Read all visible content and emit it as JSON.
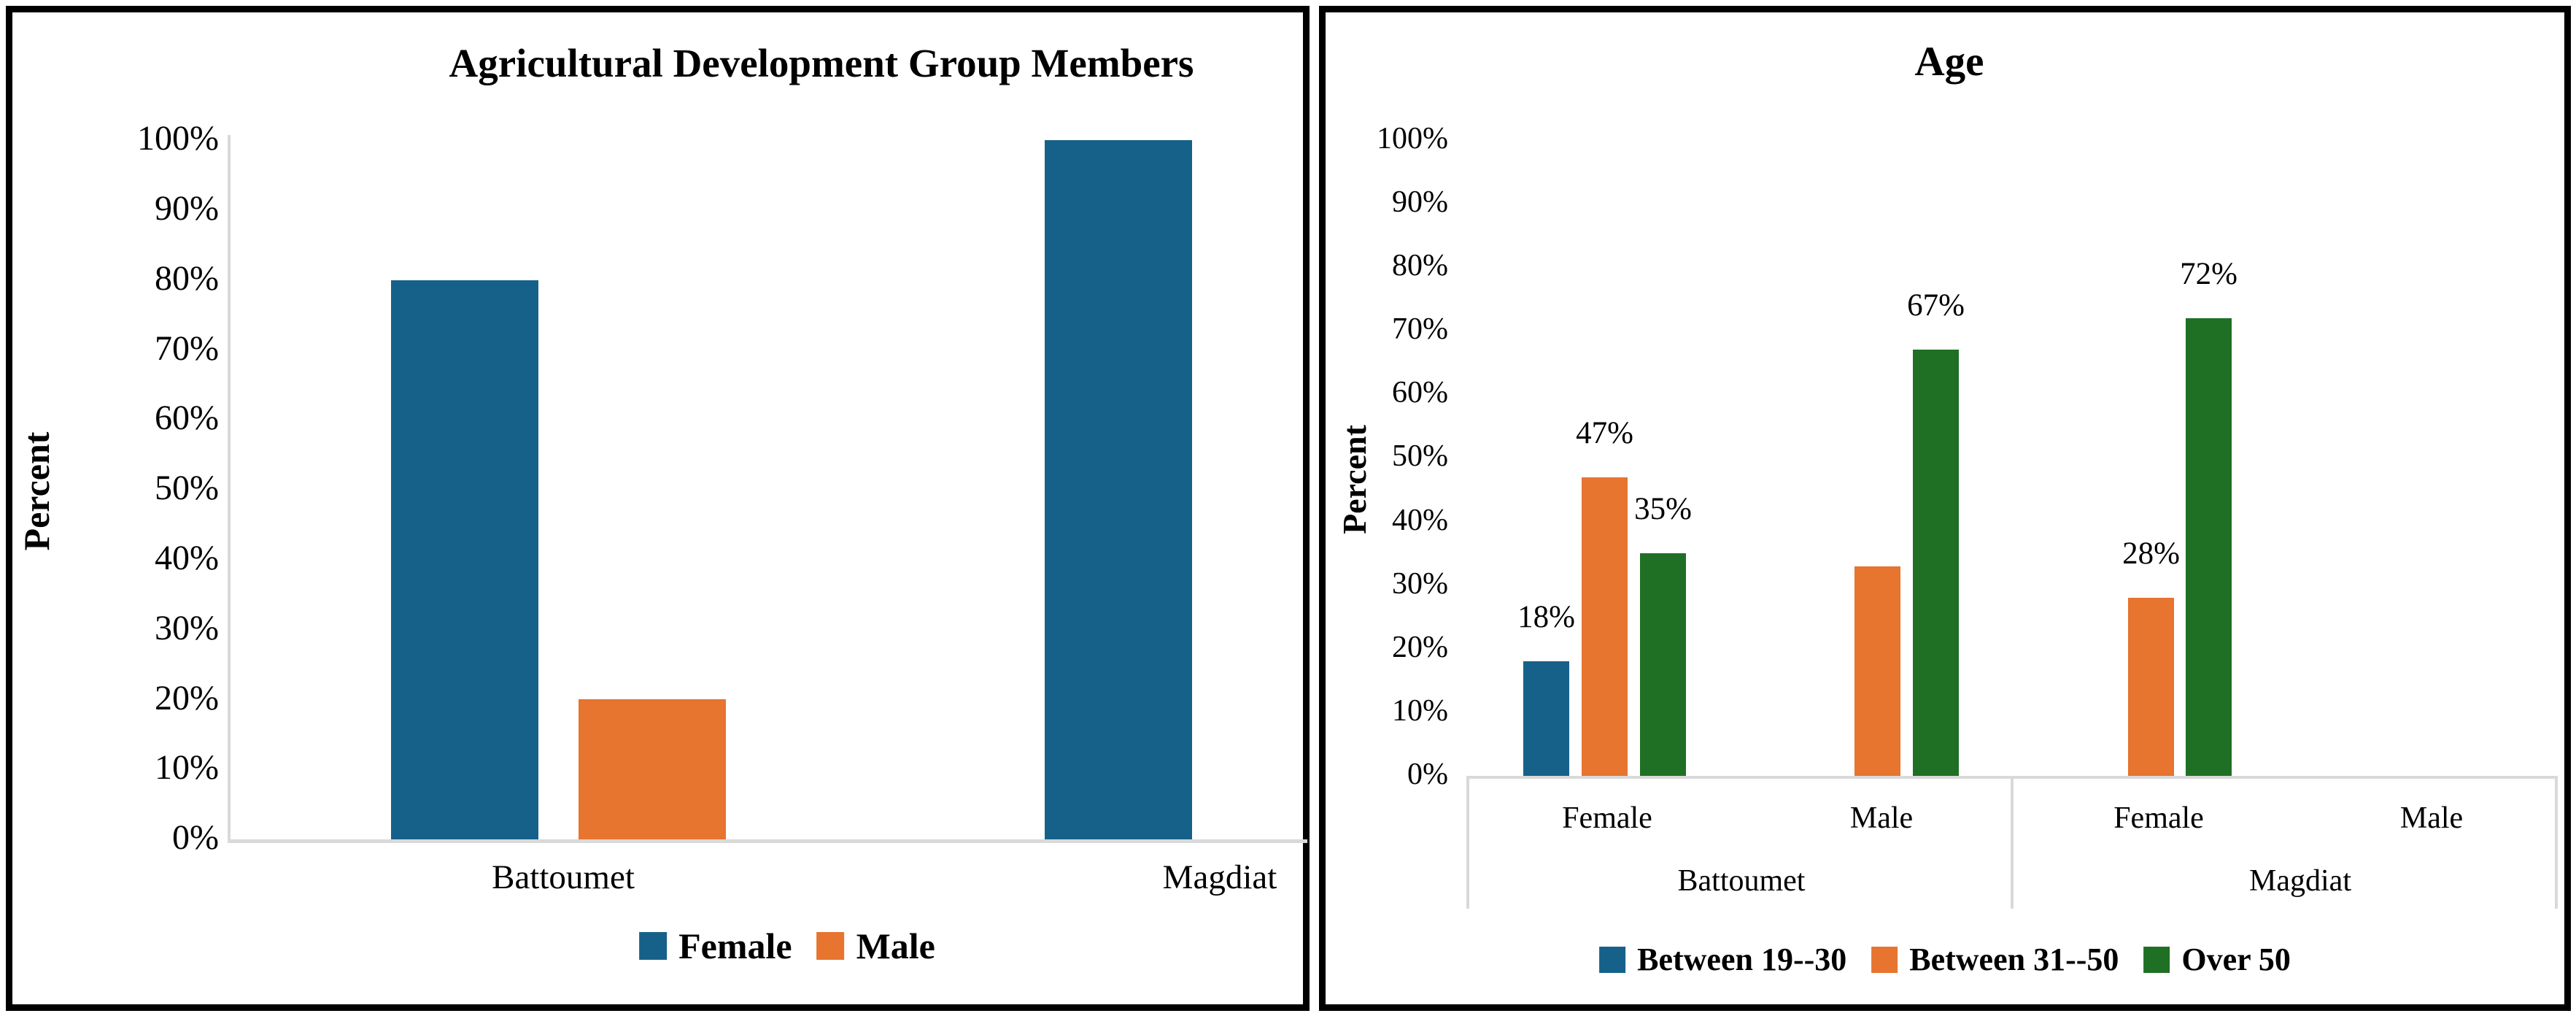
{
  "page_title": "Agricultural development group member charts",
  "chart_data": [
    {
      "type": "bar",
      "title": "Agricultural Development Group Members",
      "ylabel": "Percent",
      "categories": [
        "Battoumet",
        "Magdiat"
      ],
      "series": [
        {
          "name": "Female",
          "color": "#16618A",
          "values": [
            80,
            100
          ],
          "labels": [
            "",
            ""
          ]
        },
        {
          "name": "Male",
          "color": "#E7742F",
          "values": [
            20,
            0
          ],
          "labels": [
            "",
            ""
          ]
        }
      ],
      "ylim": [
        0,
        100
      ],
      "ytick_step": 10,
      "ytick_labels": [
        "100%",
        "90%",
        "80%",
        "70%",
        "60%",
        "50%",
        "40%",
        "30%",
        "20%",
        "10%",
        "0%"
      ],
      "grid": false,
      "legend_position": "bottom",
      "data_labels_shown": false
    },
    {
      "type": "bar",
      "title": "Age",
      "ylabel": "Percent",
      "group_categories": [
        "Battoumet",
        "Magdiat"
      ],
      "categories": [
        "Female",
        "Male",
        "Female",
        "Male"
      ],
      "series": [
        {
          "name": "Between 19--30",
          "color": "#16618A",
          "values": [
            18,
            0,
            0,
            0
          ],
          "labels": [
            "18%",
            "",
            "",
            ""
          ]
        },
        {
          "name": "Between 31--50",
          "color": "#E7742F",
          "values": [
            47,
            33,
            28,
            0
          ],
          "labels": [
            "47%",
            "",
            "28%",
            ""
          ]
        },
        {
          "name": "Over 50",
          "color": "#1F7025",
          "values": [
            35,
            67,
            72,
            0
          ],
          "labels": [
            "35%",
            "67%",
            "72%",
            ""
          ]
        }
      ],
      "ylim": [
        0,
        100
      ],
      "ytick_step": 10,
      "ytick_labels": [
        "100%",
        "90%",
        "80%",
        "70%",
        "60%",
        "50%",
        "40%",
        "30%",
        "20%",
        "10%",
        "0%"
      ],
      "grid": false,
      "legend_position": "bottom",
      "data_labels_shown": true
    }
  ],
  "colors": {
    "female_blue": "#16618A",
    "male_orange": "#E7742F",
    "over50_green": "#1F7025",
    "axis_gray": "#D9D9D9",
    "panel_border": "#000000"
  }
}
